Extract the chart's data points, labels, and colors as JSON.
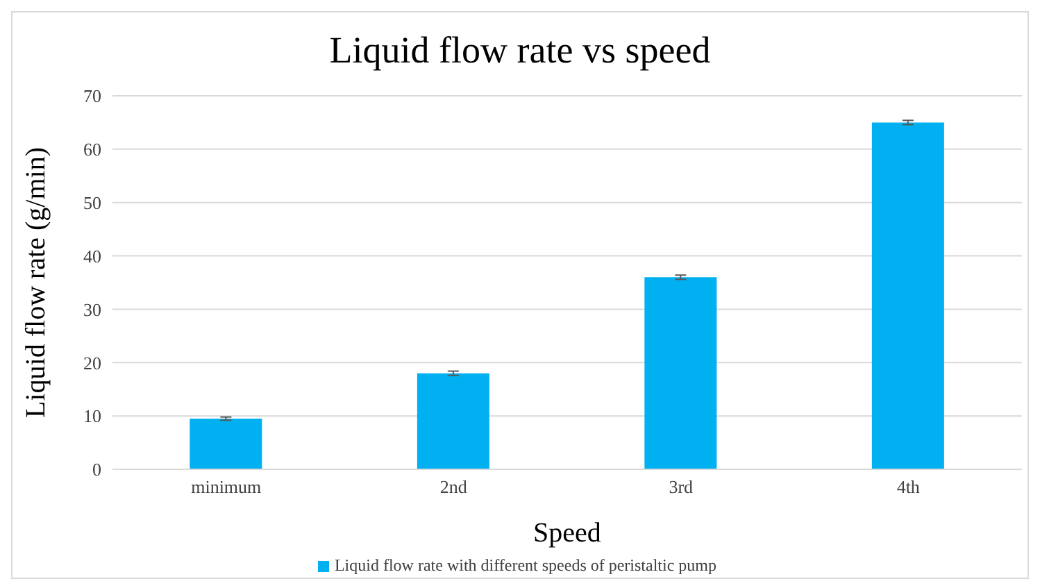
{
  "chart_data": {
    "type": "bar",
    "title": "Liquid flow rate vs speed",
    "xlabel": "Speed",
    "ylabel": "Liquid flow rate (g/min)",
    "categories": [
      "minimum",
      "2nd",
      "3rd",
      "4th"
    ],
    "series": [
      {
        "name": "Liquid flow rate with different speeds of peristaltic pump",
        "color": "#00b0f0",
        "values": [
          9.5,
          18,
          36,
          65
        ],
        "errors": [
          0.3,
          0.4,
          0.4,
          0.4
        ]
      }
    ],
    "ylim": [
      0,
      70
    ],
    "yticks": [
      0,
      10,
      20,
      30,
      40,
      50,
      60,
      70
    ],
    "grid": "y",
    "legend": "bottom"
  }
}
